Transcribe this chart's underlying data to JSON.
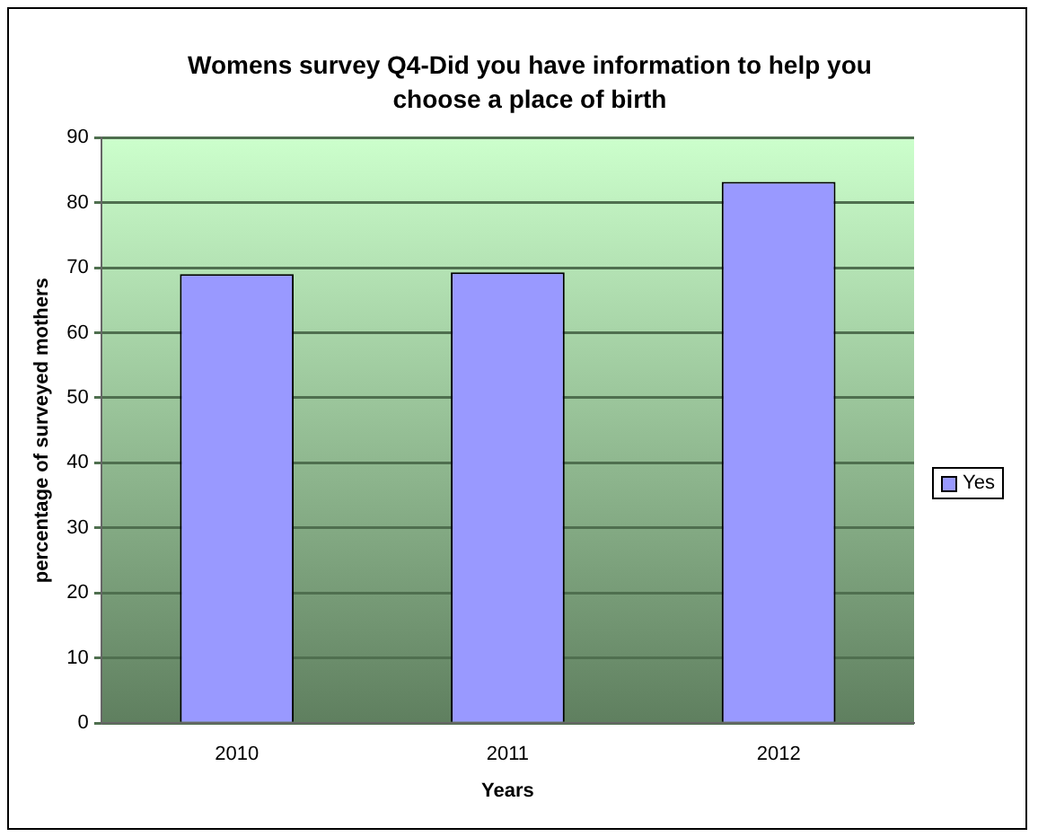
{
  "chart_data": {
    "type": "bar",
    "title": "Womens survey Q4-Did you have information to help you choose a place of birth",
    "xlabel": "Years",
    "ylabel": "percentage of surveyed mothers",
    "categories": [
      "2010",
      "2011",
      "2012"
    ],
    "series": [
      {
        "name": "Yes",
        "color": "#9999ff",
        "values": [
          69,
          69.3,
          83.2
        ]
      }
    ],
    "ylim": [
      0,
      90
    ],
    "yticks": [
      0,
      10,
      20,
      30,
      40,
      50,
      60,
      70,
      80,
      90
    ],
    "grid": "y",
    "legend": "right"
  }
}
